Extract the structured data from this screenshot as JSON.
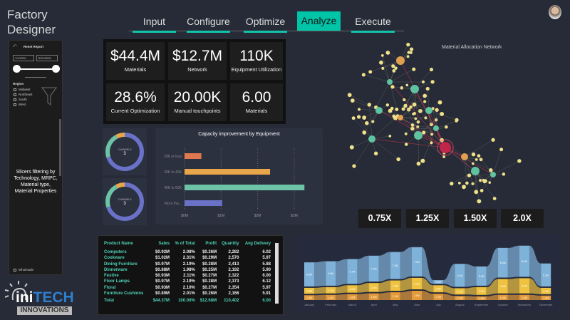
{
  "app": {
    "title_line1": "Factory",
    "title_line2": "Designer"
  },
  "sidebar": {
    "reset_label": "Reset Report",
    "date_start": "1/1/2020",
    "date_end": "5/31/2020",
    "region_label": "Region",
    "regions": [
      "Midwest",
      "Northeast",
      "South",
      "West"
    ],
    "note": "Slicers filtering by Technology, MRPC, Material type, Material Properties",
    "bottom_item": "Wholesale"
  },
  "nav": {
    "tabs": [
      "Input",
      "Configure",
      "Optimize",
      "Analyze",
      "Execute"
    ],
    "active": "Analyze",
    "accent": "#00c4a8"
  },
  "kpis": [
    {
      "value": "$44.4M",
      "label": "Materials"
    },
    {
      "value": "$12.7M",
      "label": "Network"
    },
    {
      "value": "110K",
      "label": "Equipment Utilization"
    },
    {
      "value": "28.6%",
      "label": "Current Optimization"
    },
    {
      "value": "20.00K",
      "label": "Manual touchpoints"
    },
    {
      "value": "6.00",
      "label": "Materials"
    }
  ],
  "donuts": [
    {
      "center_label": "CHANNELS",
      "center_value": "3",
      "shares": [
        0.7,
        0.22,
        0.08
      ]
    },
    {
      "center_label": "CHANNELS",
      "center_value": "3",
      "shares": [
        0.7,
        0.22,
        0.08
      ]
    }
  ],
  "network": {
    "title": "Material Allocation Network"
  },
  "multipliers": [
    "0.75X",
    "1.25X",
    "1.50X",
    "2.0X"
  ],
  "logo": {
    "text1": "ini",
    "text2": "TECH",
    "text3": "INNOVATIONS"
  },
  "table": {
    "headers": [
      "Product Name",
      "Sales",
      "% of Total",
      "Profit",
      "Quantity",
      "Avg Delivery"
    ],
    "rows": [
      [
        "Computers",
        "$0.92M",
        "2.08%",
        "$0.26M",
        "2,282",
        "6.02"
      ],
      [
        "Cookware",
        "$1.02M",
        "2.31%",
        "$0.29M",
        "2,570",
        "5.97"
      ],
      [
        "Dining Furniture",
        "$0.97M",
        "2.19%",
        "$0.28M",
        "2,413",
        "5.88"
      ],
      [
        "Dinnerware",
        "$0.88M",
        "1.98%",
        "$0.25M",
        "2,192",
        "5.90"
      ],
      [
        "Festive",
        "$0.93M",
        "2.11%",
        "$0.27M",
        "2,322",
        "6.00"
      ],
      [
        "Floor Lamps",
        "$0.97M",
        "2.19%",
        "$0.28M",
        "2,373",
        "6.12"
      ],
      [
        "Floral",
        "$0.93M",
        "2.10%",
        "$0.27M",
        "2,354",
        "5.97"
      ],
      [
        "Furniture Cushions",
        "$0.89M",
        "2.01%",
        "$0.26M",
        "2,166",
        "5.91"
      ]
    ],
    "total": [
      "Total",
      "$44.37M",
      "100.00%",
      "$12.68M",
      "110,402",
      "6.00"
    ]
  },
  "chart_data": [
    {
      "type": "bar",
      "orientation": "horizontal",
      "title": "Capacity improvement by Equipment",
      "categories": [
        "20K or less",
        "20K to 40K",
        "40K to 60K",
        "More tha..."
      ],
      "values": [
        0.46,
        2.34,
        3.28,
        1.03
      ],
      "colors": [
        "#e0784f",
        "#e7a64a",
        "#6cc3a6",
        "#6a72c8"
      ],
      "xticks": [
        "$0M",
        "$1M",
        "$2M",
        "$3M"
      ],
      "xlim": [
        0,
        3.3
      ],
      "grid": true
    },
    {
      "type": "area",
      "subtype": "ribbon",
      "categories": [
        "January",
        "February",
        "March",
        "April",
        "May",
        "June",
        "July",
        "August",
        "September",
        "October",
        "November",
        "December"
      ],
      "series": [
        {
          "values": [
            1.3,
            1.4,
            1.6,
            1.8,
            2.1,
            2.5,
            1.7,
            1.1,
            1.0,
            1.4,
            1.4,
            1.2
          ],
          "color": "#e39a3b"
        },
        {
          "values": [
            1.6,
            1.7,
            2.0,
            2.4,
            2.8,
            3.1,
            1.9,
            1.7,
            2.1,
            3.9,
            4.1,
            1.7
          ],
          "color": "#efc341"
        },
        {
          "values": [
            6.5,
            6.6,
            6.7,
            7.0,
            7.3,
            7.9,
            1.0,
            6.2,
            5.2,
            8.0,
            8.4,
            6.2
          ],
          "color": "#7fb2d8"
        }
      ]
    }
  ]
}
